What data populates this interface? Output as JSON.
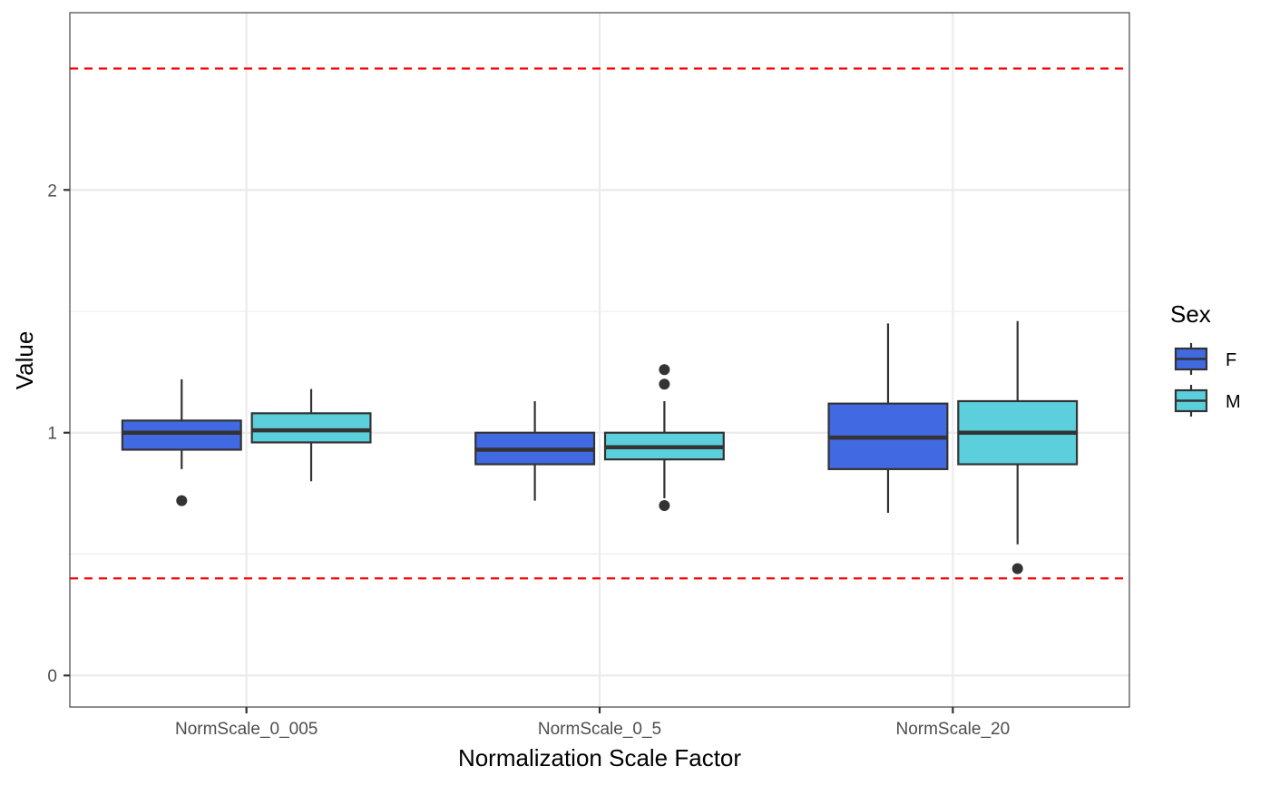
{
  "chart_data": {
    "type": "boxplot",
    "xlabel": "Normalization Scale Factor",
    "ylabel": "Value",
    "categories": [
      "NormScale_0_005",
      "NormScale_0_5",
      "NormScale_20"
    ],
    "ylim": [
      -0.13,
      2.73
    ],
    "yticks": [
      0,
      1,
      2
    ],
    "ytick_labels": [
      "0",
      "1",
      "2"
    ],
    "grid": true,
    "legend": {
      "title": "Sex",
      "placement": "right"
    },
    "reference_lines": [
      {
        "y": 2.5,
        "color": "#ff0000",
        "style": "dashed"
      },
      {
        "y": 0.4,
        "color": "#ff0000",
        "style": "dashed"
      }
    ],
    "series": [
      {
        "name": "F",
        "color": "#4169e1",
        "boxes": [
          {
            "category": "NormScale_0_005",
            "whisker_low": 0.85,
            "q1": 0.93,
            "median": 1.0,
            "q3": 1.05,
            "whisker_high": 1.22,
            "outliers": [
              0.72
            ]
          },
          {
            "category": "NormScale_0_5",
            "whisker_low": 0.72,
            "q1": 0.87,
            "median": 0.93,
            "q3": 1.0,
            "whisker_high": 1.13,
            "outliers": []
          },
          {
            "category": "NormScale_20",
            "whisker_low": 0.67,
            "q1": 0.85,
            "median": 0.98,
            "q3": 1.12,
            "whisker_high": 1.45,
            "outliers": []
          }
        ]
      },
      {
        "name": "M",
        "color": "#5bcfdb",
        "boxes": [
          {
            "category": "NormScale_0_005",
            "whisker_low": 0.8,
            "q1": 0.96,
            "median": 1.01,
            "q3": 1.08,
            "whisker_high": 1.18,
            "outliers": []
          },
          {
            "category": "NormScale_0_5",
            "whisker_low": 0.73,
            "q1": 0.89,
            "median": 0.94,
            "q3": 1.0,
            "whisker_high": 1.13,
            "outliers": [
              0.7,
              1.2,
              1.26
            ]
          },
          {
            "category": "NormScale_20",
            "whisker_low": 0.54,
            "q1": 0.87,
            "median": 1.0,
            "q3": 1.13,
            "whisker_high": 1.46,
            "outliers": [
              0.44
            ]
          }
        ]
      }
    ]
  }
}
